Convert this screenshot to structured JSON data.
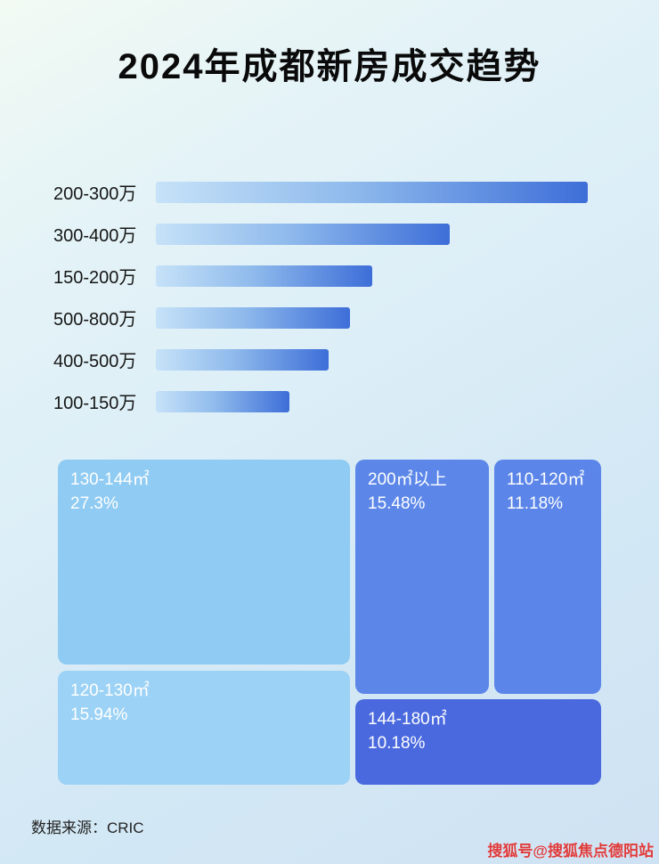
{
  "title": "2024年成都新房成交趋势",
  "footer": {
    "source": "数据来源：CRIC"
  },
  "watermark": "搜狐号@搜狐焦点德阳站",
  "colors": {
    "bar_gradient_start": "#c6e2f8",
    "bar_gradient_end": "#3d6ed8",
    "background_top": "#f2faf3",
    "background_bottom": "#cfe2f3",
    "watermark_red": "#e03a3a"
  },
  "chart_data": [
    {
      "type": "bar",
      "orientation": "horizontal",
      "title": "2024年成都新房成交趋势",
      "categories": [
        "200-300万",
        "300-400万",
        "150-200万",
        "500-800万",
        "400-500万",
        "100-150万"
      ],
      "values": [
        100,
        68,
        50,
        45,
        40,
        31
      ],
      "value_note": "bars unlabeled; values estimated as percent of longest bar",
      "xlabel": "",
      "ylabel": "",
      "grid": false,
      "legend": false
    },
    {
      "type": "treemap",
      "items": [
        {
          "label": "130-144㎡",
          "value_pct": 27.3,
          "value_label": "27.3%",
          "color": "#8fcbf2"
        },
        {
          "label": "120-130㎡",
          "value_pct": 15.94,
          "value_label": "15.94%",
          "color": "#9cd2f5"
        },
        {
          "label": "200㎡以上",
          "value_pct": 15.48,
          "value_label": "15.48%",
          "color": "#5c87e9"
        },
        {
          "label": "110-120㎡",
          "value_pct": 11.18,
          "value_label": "11.18%",
          "color": "#5b85e8"
        },
        {
          "label": "144-180㎡",
          "value_pct": 10.18,
          "value_label": "10.18%",
          "color": "#4a69de"
        }
      ]
    }
  ]
}
